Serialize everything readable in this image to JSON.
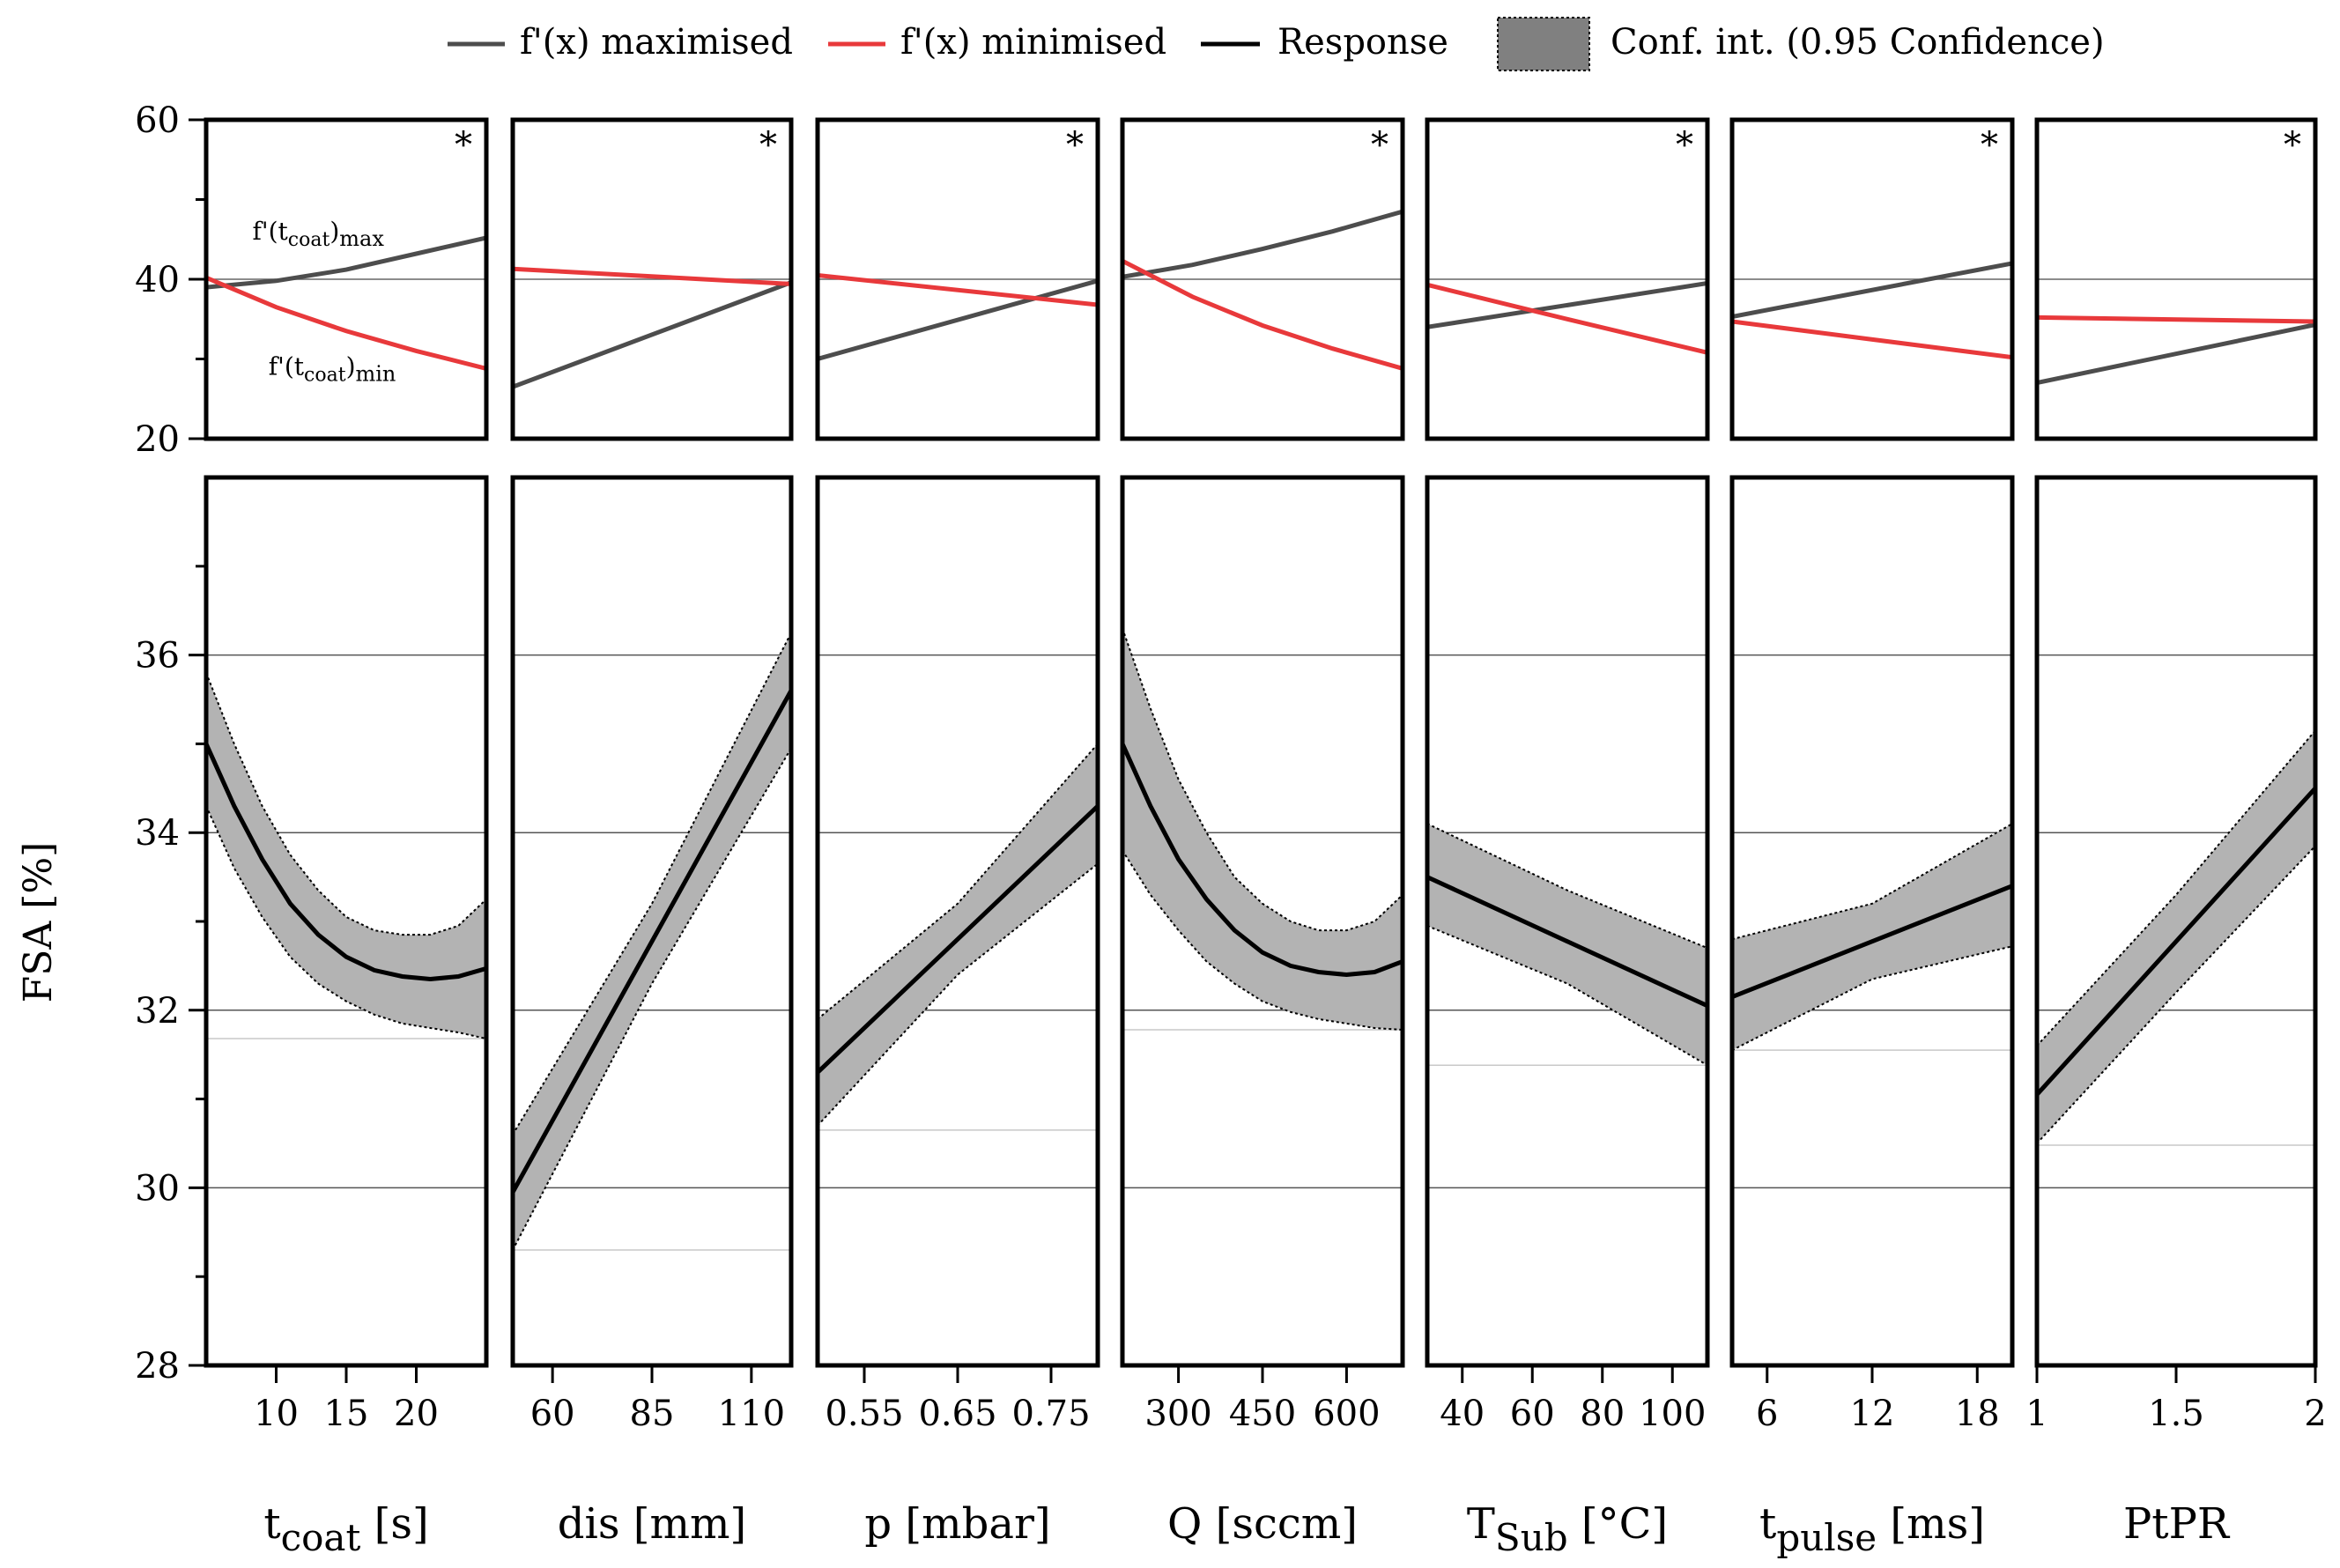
{
  "legend": {
    "items": [
      {
        "label": "f'(x) maximised",
        "kind": "line",
        "color": "#4d4d4d"
      },
      {
        "label": "f'(x) minimised",
        "kind": "line",
        "color": "#e8393b"
      },
      {
        "label": "Response",
        "kind": "line",
        "color": "#000000"
      },
      {
        "label": "Conf. int. (0.95 Confidence)",
        "kind": "patch",
        "color": "#808080"
      }
    ]
  },
  "chart_data": {
    "type": "line",
    "ylabel": "FSA [%]",
    "significance_marker": "*",
    "top_panel": {
      "ylim": [
        20,
        60
      ],
      "ytick_labels": [
        "60",
        "40",
        "20"
      ],
      "ytick_values": [
        60,
        40,
        20
      ],
      "reference_line": 40,
      "annotations": [
        {
          "panel": 0,
          "base": "f'(t",
          "sub": "coat",
          "suffix": ")",
          "tag": "max",
          "x": 13,
          "y": 45
        },
        {
          "panel": 0,
          "base": "f'(t",
          "sub": "coat",
          "suffix": ")",
          "tag": "min",
          "x": 14,
          "y": 28
        }
      ]
    },
    "bottom_panel": {
      "ylim": [
        28,
        38
      ],
      "ytick_labels": [
        "36",
        "34",
        "32",
        "30",
        "28"
      ],
      "ytick_values": [
        36,
        34,
        32,
        30,
        28
      ],
      "gridlines": [
        30,
        32,
        34,
        36
      ]
    },
    "factors": [
      {
        "label_main": "t",
        "label_sub": "coat",
        "label_unit": " [s]",
        "xlim": [
          5,
          25
        ],
        "xticks": [
          10,
          15,
          20
        ],
        "xtick_labels": [
          "10",
          "15",
          "20"
        ],
        "max_line": [
          [
            5,
            39.0
          ],
          [
            10,
            39.8
          ],
          [
            15,
            41.2
          ],
          [
            20,
            43.2
          ],
          [
            25,
            45.2
          ]
        ],
        "min_line": [
          [
            5,
            40.2
          ],
          [
            10,
            36.5
          ],
          [
            15,
            33.5
          ],
          [
            20,
            31.0
          ],
          [
            25,
            28.8
          ]
        ],
        "response": [
          [
            5,
            35.0
          ],
          [
            7,
            34.3
          ],
          [
            9,
            33.7
          ],
          [
            11,
            33.2
          ],
          [
            13,
            32.85
          ],
          [
            15,
            32.6
          ],
          [
            17,
            32.45
          ],
          [
            19,
            32.38
          ],
          [
            21,
            32.35
          ],
          [
            23,
            32.38
          ],
          [
            25,
            32.47
          ]
        ],
        "ci_upper": [
          [
            5,
            35.8
          ],
          [
            7,
            35.0
          ],
          [
            9,
            34.3
          ],
          [
            11,
            33.75
          ],
          [
            13,
            33.35
          ],
          [
            15,
            33.05
          ],
          [
            17,
            32.9
          ],
          [
            19,
            32.85
          ],
          [
            21,
            32.85
          ],
          [
            23,
            32.95
          ],
          [
            25,
            33.25
          ]
        ],
        "ci_lower": [
          [
            5,
            34.3
          ],
          [
            7,
            33.6
          ],
          [
            9,
            33.05
          ],
          [
            11,
            32.6
          ],
          [
            13,
            32.3
          ],
          [
            15,
            32.1
          ],
          [
            17,
            31.95
          ],
          [
            19,
            31.85
          ],
          [
            21,
            31.8
          ],
          [
            23,
            31.75
          ],
          [
            25,
            31.68
          ]
        ],
        "faint_ref": 31.68
      },
      {
        "label_main": "dis",
        "label_sub": "",
        "label_unit": " [mm]",
        "xlim": [
          50,
          120
        ],
        "xticks": [
          60,
          85,
          110
        ],
        "xtick_labels": [
          "60",
          "85",
          "110"
        ],
        "max_line": [
          [
            50,
            26.5
          ],
          [
            120,
            39.6
          ]
        ],
        "min_line": [
          [
            50,
            41.3
          ],
          [
            120,
            39.4
          ]
        ],
        "response": [
          [
            50,
            29.95
          ],
          [
            120,
            35.6
          ]
        ],
        "ci_upper": [
          [
            50,
            30.6
          ],
          [
            85,
            33.2
          ],
          [
            120,
            36.25
          ]
        ],
        "ci_lower": [
          [
            50,
            29.3
          ],
          [
            85,
            32.3
          ],
          [
            120,
            34.95
          ]
        ],
        "faint_ref": 29.3
      },
      {
        "label_main": "p",
        "label_sub": "",
        "label_unit": " [mbar]",
        "xlim": [
          0.5,
          0.8
        ],
        "xticks": [
          0.55,
          0.65,
          0.75
        ],
        "xtick_labels": [
          "0.55",
          "0.65",
          "0.75"
        ],
        "max_line": [
          [
            0.5,
            30.0
          ],
          [
            0.8,
            39.8
          ]
        ],
        "min_line": [
          [
            0.5,
            40.5
          ],
          [
            0.8,
            36.8
          ]
        ],
        "response": [
          [
            0.5,
            31.3
          ],
          [
            0.8,
            34.3
          ]
        ],
        "ci_upper": [
          [
            0.5,
            31.9
          ],
          [
            0.65,
            33.2
          ],
          [
            0.8,
            35.0
          ]
        ],
        "ci_lower": [
          [
            0.5,
            30.7
          ],
          [
            0.65,
            32.4
          ],
          [
            0.8,
            33.65
          ]
        ],
        "faint_ref": 30.65
      },
      {
        "label_main": "Q",
        "label_sub": "",
        "label_unit": " [sccm]",
        "xlim": [
          200,
          700
        ],
        "xticks": [
          300,
          450,
          600
        ],
        "xtick_labels": [
          "300",
          "450",
          "600"
        ],
        "max_line": [
          [
            200,
            40.3
          ],
          [
            325,
            41.8
          ],
          [
            450,
            43.8
          ],
          [
            575,
            46.0
          ],
          [
            700,
            48.5
          ]
        ],
        "min_line": [
          [
            200,
            42.3
          ],
          [
            325,
            37.8
          ],
          [
            450,
            34.2
          ],
          [
            575,
            31.3
          ],
          [
            700,
            28.8
          ]
        ],
        "response": [
          [
            200,
            35.0
          ],
          [
            250,
            34.3
          ],
          [
            300,
            33.7
          ],
          [
            350,
            33.25
          ],
          [
            400,
            32.9
          ],
          [
            450,
            32.65
          ],
          [
            500,
            32.5
          ],
          [
            550,
            32.43
          ],
          [
            600,
            32.4
          ],
          [
            650,
            32.43
          ],
          [
            700,
            32.55
          ]
        ],
        "ci_upper": [
          [
            200,
            36.3
          ],
          [
            250,
            35.4
          ],
          [
            300,
            34.6
          ],
          [
            350,
            34.0
          ],
          [
            400,
            33.5
          ],
          [
            450,
            33.2
          ],
          [
            500,
            33.0
          ],
          [
            550,
            32.9
          ],
          [
            600,
            32.9
          ],
          [
            650,
            33.0
          ],
          [
            700,
            33.3
          ]
        ],
        "ci_lower": [
          [
            200,
            33.8
          ],
          [
            250,
            33.3
          ],
          [
            300,
            32.9
          ],
          [
            350,
            32.55
          ],
          [
            400,
            32.3
          ],
          [
            450,
            32.1
          ],
          [
            500,
            31.98
          ],
          [
            550,
            31.9
          ],
          [
            600,
            31.85
          ],
          [
            650,
            31.8
          ],
          [
            700,
            31.78
          ]
        ],
        "faint_ref": 31.78
      },
      {
        "label_main": "T",
        "label_sub": "Sub",
        "label_unit": " [°C]",
        "xlim": [
          30,
          110
        ],
        "xticks": [
          40,
          60,
          80,
          100
        ],
        "xtick_labels": [
          "40",
          "60",
          "80",
          "100"
        ],
        "max_line": [
          [
            30,
            34.0
          ],
          [
            110,
            39.5
          ]
        ],
        "min_line": [
          [
            30,
            39.3
          ],
          [
            70,
            35.0
          ],
          [
            110,
            30.8
          ]
        ],
        "response": [
          [
            30,
            33.5
          ],
          [
            110,
            32.05
          ]
        ],
        "ci_upper": [
          [
            30,
            34.1
          ],
          [
            70,
            33.35
          ],
          [
            110,
            32.7
          ]
        ],
        "ci_lower": [
          [
            30,
            32.95
          ],
          [
            70,
            32.3
          ],
          [
            110,
            31.38
          ]
        ],
        "faint_ref": 31.38
      },
      {
        "label_main": "t",
        "label_sub": "pulse",
        "label_unit": " [ms]",
        "xlim": [
          4,
          20
        ],
        "xticks": [
          6,
          12,
          18
        ],
        "xtick_labels": [
          "6",
          "12",
          "18"
        ],
        "max_line": [
          [
            4,
            35.3
          ],
          [
            20,
            42.0
          ]
        ],
        "min_line": [
          [
            4,
            34.7
          ],
          [
            20,
            30.2
          ]
        ],
        "response": [
          [
            4,
            32.15
          ],
          [
            20,
            33.4
          ]
        ],
        "ci_upper": [
          [
            4,
            32.8
          ],
          [
            12,
            33.2
          ],
          [
            20,
            34.1
          ]
        ],
        "ci_lower": [
          [
            4,
            31.55
          ],
          [
            12,
            32.35
          ],
          [
            20,
            32.72
          ]
        ],
        "faint_ref": 31.55
      },
      {
        "label_main": "PtPR",
        "label_sub": "",
        "label_unit": "",
        "xlim": [
          1,
          2
        ],
        "xticks": [
          1,
          1.5,
          2
        ],
        "xtick_labels": [
          "1",
          "1.5",
          "2"
        ],
        "max_line": [
          [
            1,
            27.0
          ],
          [
            2,
            34.3
          ]
        ],
        "min_line": [
          [
            1,
            35.2
          ],
          [
            2,
            34.7
          ]
        ],
        "response": [
          [
            1,
            31.05
          ],
          [
            2,
            34.5
          ]
        ],
        "ci_upper": [
          [
            1,
            31.6
          ],
          [
            1.5,
            33.3
          ],
          [
            2,
            35.15
          ]
        ],
        "ci_lower": [
          [
            1,
            30.5
          ],
          [
            1.5,
            32.2
          ],
          [
            2,
            33.85
          ]
        ],
        "faint_ref": 30.48
      }
    ]
  }
}
